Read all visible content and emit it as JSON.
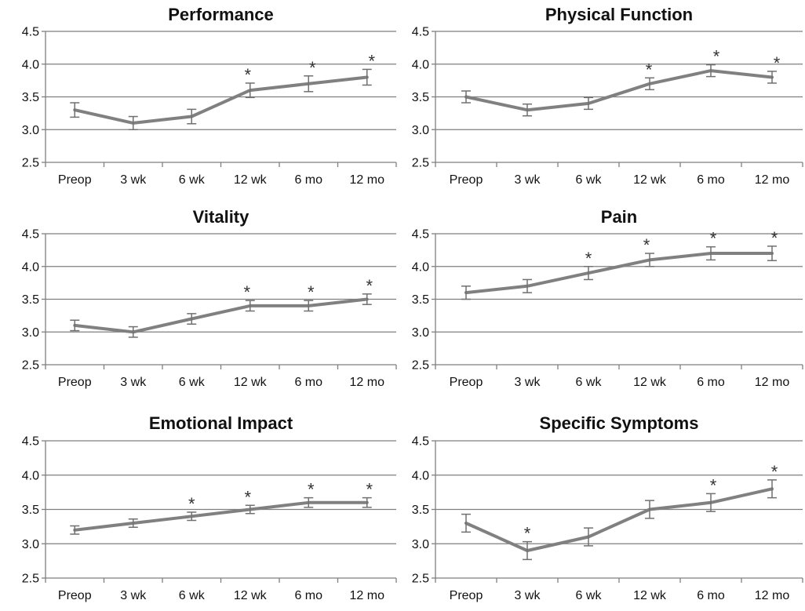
{
  "colors": {
    "line": "#808080",
    "grid": "#7f7f7f",
    "text": "#111111"
  },
  "chart_data": [
    {
      "type": "line",
      "title": "Performance",
      "categories": [
        "Preop",
        "3 wk",
        "6 wk",
        "12 wk",
        "6 mo",
        "12 mo"
      ],
      "ylim": [
        2.5,
        4.5
      ],
      "yticks": [
        "2.5",
        "3.0",
        "3.5",
        "4.0",
        "4.5"
      ],
      "grid": true,
      "values": [
        3.3,
        3.1,
        3.2,
        3.6,
        3.7,
        3.8
      ],
      "error": [
        0.11,
        0.1,
        0.11,
        0.11,
        0.12,
        0.12
      ],
      "significance": [
        "",
        "",
        "",
        "*",
        "*",
        "*"
      ]
    },
    {
      "type": "line",
      "title": "Physical Function",
      "categories": [
        "Preop",
        "3 wk",
        "6 wk",
        "12 wk",
        "6 mo",
        "12 mo"
      ],
      "ylim": [
        2.5,
        4.5
      ],
      "yticks": [
        "2.5",
        "3.0",
        "3.5",
        "4.0",
        "4.5"
      ],
      "grid": true,
      "values": [
        3.5,
        3.3,
        3.4,
        3.7,
        3.9,
        3.8
      ],
      "error": [
        0.09,
        0.09,
        0.09,
        0.09,
        0.09,
        0.09
      ],
      "significance": [
        "",
        "",
        "",
        "*",
        "*",
        "*"
      ]
    },
    {
      "type": "line",
      "title": "Vitality",
      "categories": [
        "Preop",
        "3 wk",
        "6 wk",
        "12 wk",
        "6 mo",
        "12 mo"
      ],
      "ylim": [
        2.5,
        4.5
      ],
      "yticks": [
        "2.5",
        "3.0",
        "3.5",
        "4.0",
        "4.5"
      ],
      "grid": true,
      "values": [
        3.1,
        3.0,
        3.2,
        3.4,
        3.4,
        3.5
      ],
      "error": [
        0.08,
        0.08,
        0.08,
        0.08,
        0.08,
        0.08
      ],
      "significance": [
        "",
        "",
        "",
        "*",
        "*",
        "*"
      ]
    },
    {
      "type": "line",
      "title": "Pain",
      "categories": [
        "Preop",
        "3 wk",
        "6 wk",
        "12 wk",
        "6 mo",
        "12 mo"
      ],
      "ylim": [
        2.5,
        4.5
      ],
      "yticks": [
        "2.5",
        "3.0",
        "3.5",
        "4.0",
        "4.5"
      ],
      "grid": true,
      "values": [
        3.6,
        3.7,
        3.9,
        4.1,
        4.2,
        4.2
      ],
      "error": [
        0.1,
        0.1,
        0.1,
        0.1,
        0.1,
        0.11
      ],
      "significance": [
        "",
        "",
        "*",
        "*",
        "*",
        "*"
      ]
    },
    {
      "type": "line",
      "title": "Emotional Impact",
      "categories": [
        "Preop",
        "3 wk",
        "6 wk",
        "12 wk",
        "6 mo",
        "12 mo"
      ],
      "ylim": [
        2.5,
        4.5
      ],
      "yticks": [
        "2.5",
        "3.0",
        "3.5",
        "4.0",
        "4.5"
      ],
      "grid": true,
      "values": [
        3.2,
        3.3,
        3.4,
        3.5,
        3.6,
        3.6
      ],
      "error": [
        0.06,
        0.06,
        0.06,
        0.06,
        0.07,
        0.07
      ],
      "significance": [
        "",
        "",
        "*",
        "*",
        "*",
        "*"
      ]
    },
    {
      "type": "line",
      "title": "Specific Symptoms",
      "categories": [
        "Preop",
        "3 wk",
        "6 wk",
        "12 wk",
        "6 mo",
        "12 mo"
      ],
      "ylim": [
        2.5,
        4.5
      ],
      "yticks": [
        "2.5",
        "3.0",
        "3.5",
        "4.0",
        "4.5"
      ],
      "grid": true,
      "values": [
        3.3,
        2.9,
        3.1,
        3.5,
        3.6,
        3.8
      ],
      "error": [
        0.13,
        0.13,
        0.13,
        0.13,
        0.13,
        0.13
      ],
      "significance": [
        "",
        "*",
        "",
        "",
        "*",
        "*"
      ]
    }
  ]
}
